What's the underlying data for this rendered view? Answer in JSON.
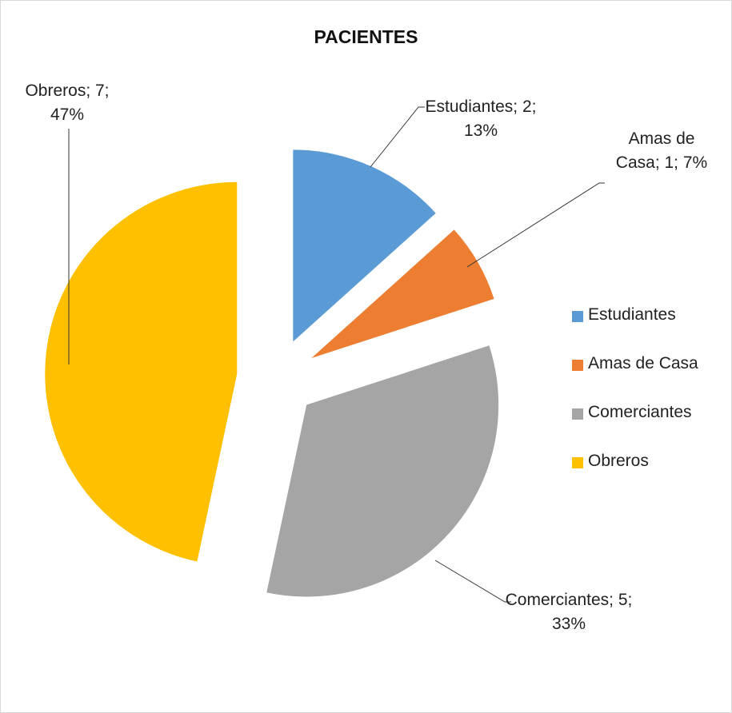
{
  "chart_data": {
    "type": "pie",
    "title": "PACIENTES",
    "categories": [
      "Estudiantes",
      "Amas de Casa",
      "Comerciantes",
      "Obreros"
    ],
    "values": [
      2,
      1,
      5,
      7
    ],
    "value_labels": [
      "Estudiantes; 2; 13%",
      "Amas de Casa; 1; 7%",
      "Comerciantes; 5; 33%",
      "Obreros; 7; 47%"
    ],
    "colors": [
      "#5b9bd5",
      "#ed7d31",
      "#a5a5a5",
      "#ffc000"
    ],
    "legend": "right"
  }
}
